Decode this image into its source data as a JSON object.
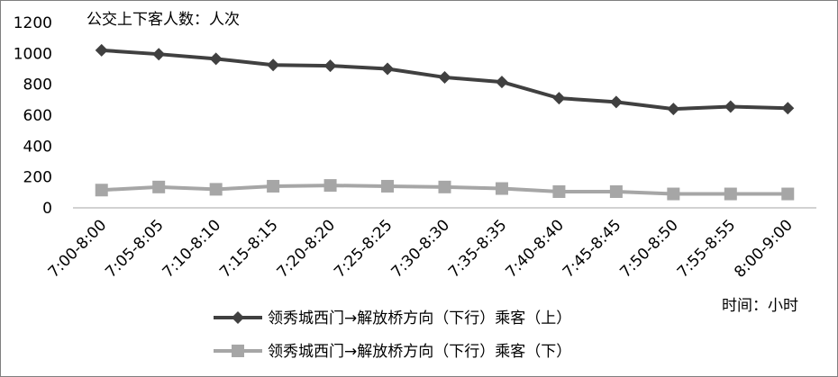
{
  "chart_data": {
    "type": "line",
    "categories": [
      "7:00-8:00",
      "7:05-8:05",
      "7:10-8:10",
      "7:15-8:15",
      "7:20-8:20",
      "7:25-8:25",
      "7:30-8:30",
      "7:35-8:35",
      "7:40-8:40",
      "7:45-8:45",
      "7:50-8:50",
      "7:55-8:55",
      "8:00-9:00"
    ],
    "series": [
      {
        "name": "领秀城西门→解放桥方向（下行）乘客（上）",
        "color": "#404040",
        "marker": "diamond",
        "values": [
          1020,
          995,
          965,
          925,
          920,
          900,
          845,
          815,
          710,
          685,
          640,
          655,
          645
        ]
      },
      {
        "name": "领秀城西门→解放桥方向（下行）乘客（下）",
        "color": "#a6a6a6",
        "marker": "square",
        "values": [
          115,
          135,
          120,
          140,
          145,
          140,
          135,
          125,
          105,
          105,
          90,
          90,
          90
        ]
      }
    ],
    "ylim": [
      0,
      1200
    ],
    "yticks": [
      0,
      200,
      400,
      600,
      800,
      1000,
      1200
    ],
    "ylabel": "公交上下客人数：人次",
    "xlabel": "时间：小时",
    "grid": false,
    "legend_position": "bottom-left"
  }
}
